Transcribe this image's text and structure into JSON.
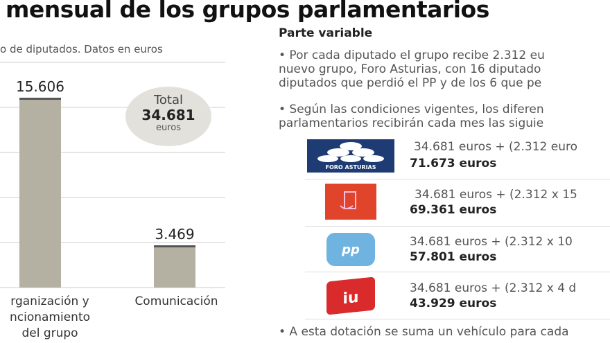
{
  "title": "mensual de los grupos parlamentarios",
  "subtitle": "o de diputados. Datos en euros",
  "total": {
    "label": "Total",
    "value": "34.681",
    "unit": "euros"
  },
  "chart_data": {
    "type": "bar",
    "categories": [
      "rganización y\nncionamiento\ndel grupo",
      "Comunicación"
    ],
    "category_lines": [
      [
        "rganización y",
        "ncionamiento",
        "del grupo"
      ],
      [
        "Comunicación"
      ]
    ],
    "values": [
      15606,
      3469
    ],
    "value_labels": [
      "15.606",
      "3.469"
    ],
    "grid": true,
    "colors": {
      "bar": "#b5b1a2",
      "bar_top": "#555555"
    }
  },
  "variable": {
    "heading": "Parte variable",
    "para1": [
      "• Por cada diputado el grupo recibe 2.312 eu",
      "nuevo grupo, Foro Asturias, con 16 diputado",
      "diputados que perdió el PP y de los 6 que pe"
    ],
    "para2": [
      "• Según las condiciones vigentes, los diferen",
      "parlamentarios recibirán cada mes las siguie"
    ],
    "groups": [
      {
        "party": "Foro Asturias",
        "logo_text": "FORO ASTURIAS",
        "color": "#1f3b73",
        "formula": "34.681 euros + (2.312 euro",
        "result": "71.673 euros"
      },
      {
        "party": "PSOE",
        "color": "#e0452c",
        "formula": "34.681 euros + (2.312 x 15",
        "result": "69.361 euros"
      },
      {
        "party": "PP",
        "color": "#6fb3e0",
        "formula": "34.681 euros + (2.312 x 10",
        "result": "57.801 euros"
      },
      {
        "party": "IU",
        "color": "#d92b2b",
        "formula": "34.681 euros + (2.312 x 4 d",
        "result": "43.929 euros"
      }
    ],
    "footer": "• A esta dotación se suma un vehículo para cada"
  }
}
